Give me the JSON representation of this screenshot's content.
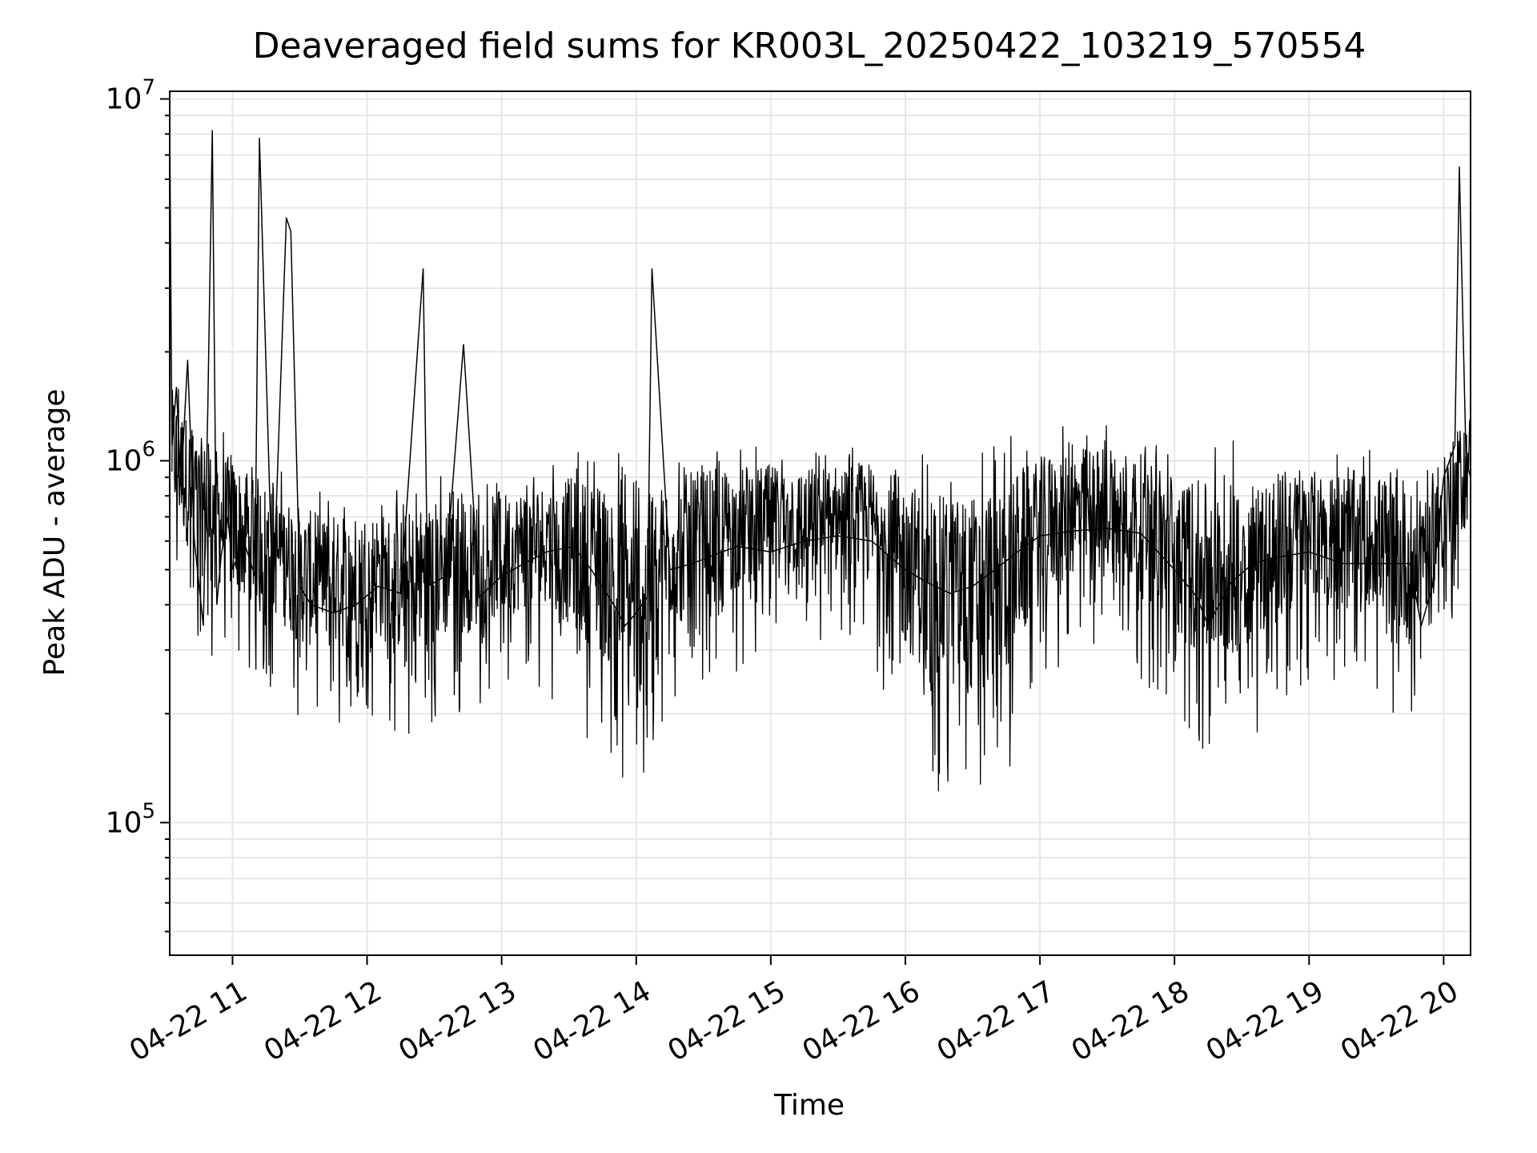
{
  "chart_data": {
    "type": "line",
    "title": "Deaveraged field sums for KR003L_20250422_103219_570554",
    "xlabel": "Time",
    "ylabel": "Peak ADU - average",
    "yscale": "log",
    "ylim": [
      43000,
      10500000
    ],
    "xlim": [
      "2025-04-22 10:32",
      "2025-04-22 20:12"
    ],
    "grid": true,
    "line_color": "#000000",
    "x_ticks": [
      {
        "t": "2025-04-22 11:00",
        "label": "04-22 11"
      },
      {
        "t": "2025-04-22 12:00",
        "label": "04-22 12"
      },
      {
        "t": "2025-04-22 13:00",
        "label": "04-22 13"
      },
      {
        "t": "2025-04-22 14:00",
        "label": "04-22 14"
      },
      {
        "t": "2025-04-22 15:00",
        "label": "04-22 15"
      },
      {
        "t": "2025-04-22 16:00",
        "label": "04-22 16"
      },
      {
        "t": "2025-04-22 17:00",
        "label": "04-22 17"
      },
      {
        "t": "2025-04-22 18:00",
        "label": "04-22 18"
      },
      {
        "t": "2025-04-22 19:00",
        "label": "04-22 19"
      },
      {
        "t": "2025-04-22 20:00",
        "label": "04-22 20"
      }
    ],
    "y_ticks": [
      {
        "value": 100000,
        "base": "10",
        "exp": "5"
      },
      {
        "value": 1000000,
        "base": "10",
        "exp": "6"
      },
      {
        "value": 10000000,
        "base": "10",
        "exp": "7"
      }
    ],
    "series": [
      {
        "x": [
          "2025-04-22 10:32",
          "2025-04-22 10:33",
          "2025-04-22 10:35",
          "2025-04-22 10:37",
          "2025-04-22 10:40",
          "2025-04-22 10:43",
          "2025-04-22 10:47",
          "2025-04-22 10:49",
          "2025-04-22 10:51",
          "2025-04-22 10:53",
          "2025-04-22 10:55",
          "2025-04-22 10:58",
          "2025-04-22 11:00",
          "2025-04-22 11:05",
          "2025-04-22 11:10",
          "2025-04-22 11:12",
          "2025-04-22 11:18",
          "2025-04-22 11:24",
          "2025-04-22 11:26",
          "2025-04-22 11:30",
          "2025-04-22 11:35",
          "2025-04-22 11:45",
          "2025-04-22 11:55",
          "2025-04-22 12:05",
          "2025-04-22 12:15",
          "2025-04-22 12:25",
          "2025-04-22 12:27",
          "2025-04-22 12:35",
          "2025-04-22 12:43",
          "2025-04-22 12:50",
          "2025-04-22 13:00",
          "2025-04-22 13:10",
          "2025-04-22 13:20",
          "2025-04-22 13:32",
          "2025-04-22 13:40",
          "2025-04-22 13:50",
          "2025-04-22 13:55",
          "2025-04-22 14:00",
          "2025-04-22 14:05",
          "2025-04-22 14:07",
          "2025-04-22 14:15",
          "2025-04-22 14:25",
          "2025-04-22 14:35",
          "2025-04-22 14:45",
          "2025-04-22 15:00",
          "2025-04-22 15:15",
          "2025-04-22 15:30",
          "2025-04-22 15:45",
          "2025-04-22 16:00",
          "2025-04-22 16:10",
          "2025-04-22 16:20",
          "2025-04-22 16:30",
          "2025-04-22 16:40",
          "2025-04-22 16:50",
          "2025-04-22 17:00",
          "2025-04-22 17:15",
          "2025-04-22 17:30",
          "2025-04-22 17:45",
          "2025-04-22 18:00",
          "2025-04-22 18:10",
          "2025-04-22 18:15",
          "2025-04-22 18:25",
          "2025-04-22 18:35",
          "2025-04-22 18:45",
          "2025-04-22 19:00",
          "2025-04-22 19:15",
          "2025-04-22 19:30",
          "2025-04-22 19:45",
          "2025-04-22 19:50",
          "2025-04-22 19:55",
          "2025-04-22 20:00",
          "2025-04-22 20:05",
          "2025-04-22 20:07",
          "2025-04-22 20:10",
          "2025-04-22 20:12"
        ],
        "y": [
          8800000,
          1100000,
          1600000,
          850000,
          1900000,
          600000,
          350000,
          1400000,
          8200000,
          400000,
          550000,
          700000,
          500000,
          600000,
          480000,
          7800000,
          400000,
          4700000,
          4300000,
          450000,
          400000,
          380000,
          400000,
          450000,
          430000,
          3400000,
          450000,
          480000,
          2100000,
          420000,
          480000,
          520000,
          560000,
          580000,
          500000,
          400000,
          350000,
          380000,
          420000,
          3400000,
          500000,
          520000,
          550000,
          580000,
          560000,
          600000,
          620000,
          600000,
          500000,
          460000,
          430000,
          450000,
          500000,
          560000,
          620000,
          640000,
          650000,
          630000,
          500000,
          420000,
          350000,
          460000,
          520000,
          540000,
          560000,
          520000,
          520000,
          520000,
          350000,
          450000,
          900000,
          1100000,
          6500000,
          1000000,
          900000
        ]
      }
    ],
    "envelope": {
      "x": [
        "2025-04-22 10:33",
        "2025-04-22 10:45",
        "2025-04-22 11:00",
        "2025-04-22 11:15",
        "2025-04-22 11:30",
        "2025-04-22 11:45",
        "2025-04-22 12:00",
        "2025-04-22 12:15",
        "2025-04-22 12:30",
        "2025-04-22 12:45",
        "2025-04-22 13:00",
        "2025-04-22 13:15",
        "2025-04-22 13:30",
        "2025-04-22 13:45",
        "2025-04-22 14:00",
        "2025-04-22 14:15",
        "2025-04-22 14:30",
        "2025-04-22 14:45",
        "2025-04-22 15:00",
        "2025-04-22 15:15",
        "2025-04-22 15:30",
        "2025-04-22 15:45",
        "2025-04-22 16:00",
        "2025-04-22 16:15",
        "2025-04-22 16:30",
        "2025-04-22 16:45",
        "2025-04-22 17:00",
        "2025-04-22 17:15",
        "2025-04-22 17:30",
        "2025-04-22 17:45",
        "2025-04-22 18:00",
        "2025-04-22 18:15",
        "2025-04-22 18:30",
        "2025-04-22 18:45",
        "2025-04-22 19:00",
        "2025-04-22 19:15",
        "2025-04-22 19:30",
        "2025-04-22 19:45",
        "2025-04-22 20:00",
        "2025-04-22 20:12"
      ],
      "hi": [
        1800000,
        1400000,
        1200000,
        1000000,
        900000,
        800000,
        850000,
        850000,
        950000,
        900000,
        950000,
        1000000,
        1100000,
        1150000,
        1050000,
        1100000,
        1100000,
        1100000,
        1100000,
        1050000,
        1100000,
        1150000,
        1150000,
        1100000,
        1150000,
        1200000,
        1250000,
        1250000,
        1300000,
        1250000,
        1200000,
        1150000,
        1150000,
        1150000,
        1100000,
        1100000,
        1100000,
        1050000,
        1200000,
        1500000
      ],
      "lo": [
        450000,
        280000,
        250000,
        240000,
        180000,
        170000,
        200000,
        170000,
        180000,
        200000,
        220000,
        240000,
        200000,
        150000,
        110000,
        200000,
        250000,
        260000,
        290000,
        300000,
        300000,
        270000,
        160000,
        120000,
        110000,
        130000,
        230000,
        290000,
        300000,
        250000,
        180000,
        140000,
        160000,
        200000,
        240000,
        250000,
        230000,
        170000,
        300000,
        450000
      ]
    }
  }
}
